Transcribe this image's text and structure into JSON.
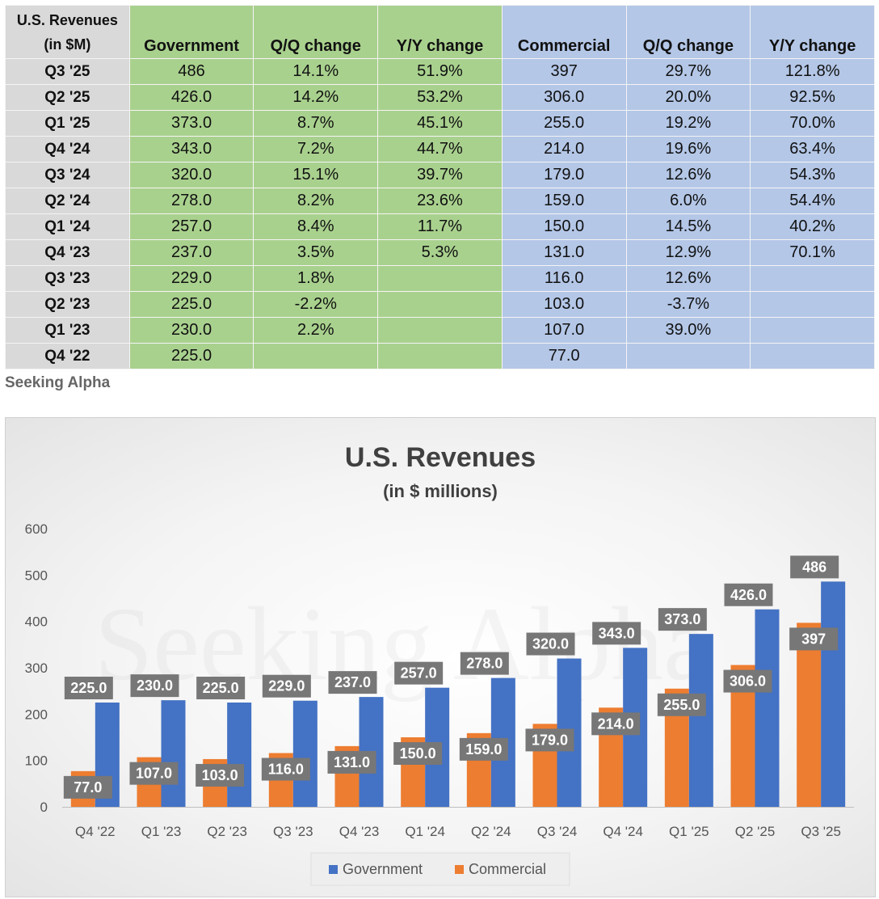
{
  "table": {
    "corner_label_line1": "U.S. Revenues",
    "corner_label_line2": "(in $M)",
    "columns": [
      "Government",
      "Q/Q change",
      "Y/Y change",
      "Commercial",
      "Q/Q change",
      "Y/Y change"
    ],
    "rows": [
      {
        "quarter": "Q3 '25",
        "cells": [
          "486",
          "14.1%",
          "51.9%",
          "397",
          "29.7%",
          "121.8%"
        ]
      },
      {
        "quarter": "Q2 '25",
        "cells": [
          "426.0",
          "14.2%",
          "53.2%",
          "306.0",
          "20.0%",
          "92.5%"
        ]
      },
      {
        "quarter": "Q1 '25",
        "cells": [
          "373.0",
          "8.7%",
          "45.1%",
          "255.0",
          "19.2%",
          "70.0%"
        ]
      },
      {
        "quarter": "Q4 '24",
        "cells": [
          "343.0",
          "7.2%",
          "44.7%",
          "214.0",
          "19.6%",
          "63.4%"
        ]
      },
      {
        "quarter": "Q3 '24",
        "cells": [
          "320.0",
          "15.1%",
          "39.7%",
          "179.0",
          "12.6%",
          "54.3%"
        ]
      },
      {
        "quarter": "Q2 '24",
        "cells": [
          "278.0",
          "8.2%",
          "23.6%",
          "159.0",
          "6.0%",
          "54.4%"
        ]
      },
      {
        "quarter": "Q1 '24",
        "cells": [
          "257.0",
          "8.4%",
          "11.7%",
          "150.0",
          "14.5%",
          "40.2%"
        ]
      },
      {
        "quarter": "Q4 '23",
        "cells": [
          "237.0",
          "3.5%",
          "5.3%",
          "131.0",
          "12.9%",
          "70.1%"
        ]
      },
      {
        "quarter": "Q3 '23",
        "cells": [
          "229.0",
          "1.8%",
          "",
          "116.0",
          "12.6%",
          ""
        ]
      },
      {
        "quarter": "Q2 '23",
        "cells": [
          "225.0",
          "-2.2%",
          "",
          "103.0",
          "-3.7%",
          ""
        ]
      },
      {
        "quarter": "Q1 '23",
        "cells": [
          "230.0",
          "2.2%",
          "",
          "107.0",
          "39.0%",
          ""
        ]
      },
      {
        "quarter": "Q4 '22",
        "cells": [
          "225.0",
          "",
          "",
          "77.0",
          "",
          ""
        ]
      }
    ]
  },
  "source_label": "Seeking Alpha",
  "watermark": "Seeking Alpha",
  "colors": {
    "government": "#4472c4",
    "commercial": "#ed7d31",
    "data_label_bg": "#777777",
    "table_label": "#d9d9d9",
    "table_government": "#a9d18e",
    "table_commercial": "#b4c7e7"
  },
  "chart_data": {
    "type": "bar",
    "title": "U.S. Revenues",
    "subtitle": "(in $ millions)",
    "xlabel": "",
    "ylabel": "",
    "categories": [
      "Q4 '22",
      "Q1 '23",
      "Q2 '23",
      "Q3 '23",
      "Q4 '23",
      "Q1 '24",
      "Q2 '24",
      "Q3 '24",
      "Q4 '24",
      "Q1 '25",
      "Q2 '25",
      "Q3 '25"
    ],
    "ylim": [
      0,
      600
    ],
    "yticks": [
      0,
      100,
      200,
      300,
      400,
      500,
      600
    ],
    "grid": false,
    "legend": "bottom",
    "series": [
      {
        "name": "Commercial",
        "values": [
          77,
          107,
          103,
          116,
          131,
          150,
          159,
          179,
          214,
          255,
          306,
          397
        ],
        "labels": [
          "77.0",
          "107.0",
          "103.0",
          "116.0",
          "131.0",
          "150.0",
          "159.0",
          "179.0",
          "214.0",
          "255.0",
          "306.0",
          "397"
        ]
      },
      {
        "name": "Government",
        "values": [
          225,
          230,
          225,
          229,
          237,
          257,
          278,
          320,
          343,
          373,
          426,
          486
        ],
        "labels": [
          "225.0",
          "230.0",
          "225.0",
          "229.0",
          "237.0",
          "257.0",
          "278.0",
          "320.0",
          "343.0",
          "373.0",
          "426.0",
          "486"
        ]
      }
    ],
    "legend_order": [
      "Government",
      "Commercial"
    ]
  }
}
